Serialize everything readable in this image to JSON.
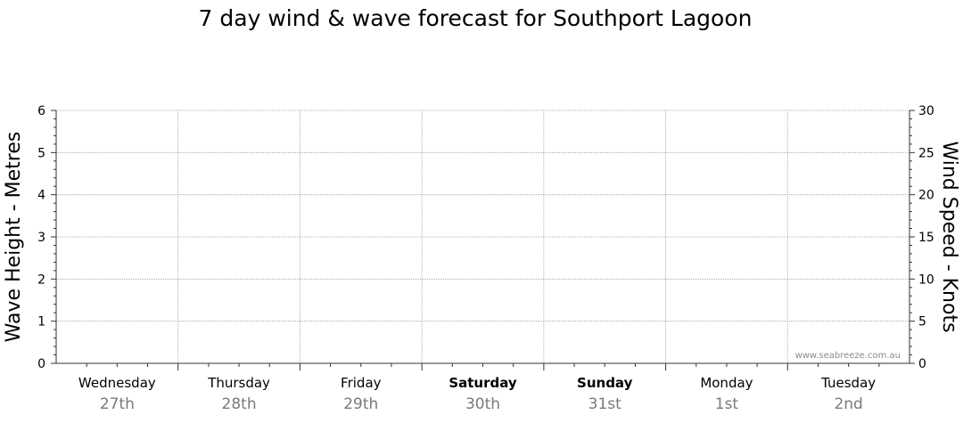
{
  "chart_data": {
    "type": "line",
    "title": "7 day wind & wave forecast for Southport Lagoon",
    "ylabel_left": "Wave Height - Metres",
    "ylabel_right": "Wind Speed - Knots",
    "ylim_left": [
      0,
      6
    ],
    "ylim_right": [
      0,
      30
    ],
    "yticks_left": [
      "0",
      "1",
      "2",
      "3",
      "4",
      "5",
      "6"
    ],
    "yticks_right": [
      "0",
      "5",
      "10",
      "15",
      "20",
      "25",
      "30"
    ],
    "days": [
      {
        "day": "Wednesday",
        "date": "27th",
        "weekend": false
      },
      {
        "day": "Thursday",
        "date": "28th",
        "weekend": false
      },
      {
        "day": "Friday",
        "date": "29th",
        "weekend": false
      },
      {
        "day": "Saturday",
        "date": "30th",
        "weekend": true
      },
      {
        "day": "Sunday",
        "date": "31st",
        "weekend": true
      },
      {
        "day": "Monday",
        "date": "1st",
        "weekend": false
      },
      {
        "day": "Tuesday",
        "date": "2nd",
        "weekend": false
      }
    ],
    "series": [],
    "grid": true,
    "watermark": "www.seabreeze.com.au"
  }
}
